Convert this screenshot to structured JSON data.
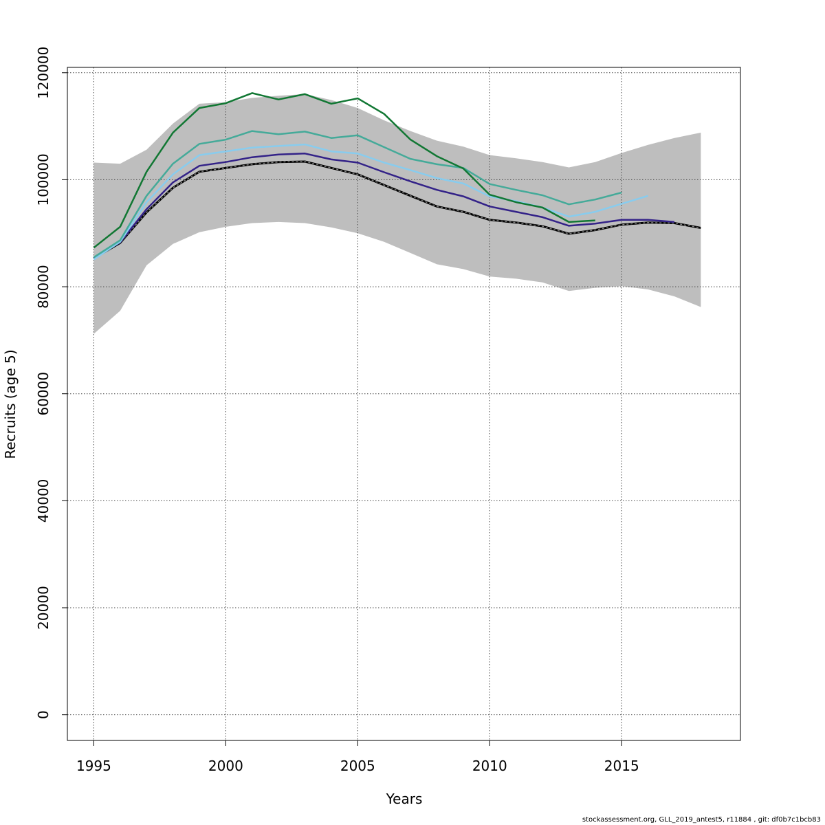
{
  "chart_data": {
    "type": "line",
    "title": "",
    "xlabel": "Years",
    "ylabel": "Recruits (age 5)",
    "xlim": [
      1994,
      2019.5
    ],
    "ylim": [
      -4800,
      121000
    ],
    "xticks": [
      1995,
      2000,
      2005,
      2010,
      2015
    ],
    "yticks": [
      0,
      20000,
      40000,
      60000,
      80000,
      100000,
      120000
    ],
    "grid": true,
    "legend": "none",
    "band": {
      "color": "#bebebe",
      "x": [
        1995,
        1996,
        1997,
        1998,
        1999,
        2000,
        2001,
        2002,
        2003,
        2004,
        2005,
        2006,
        2007,
        2008,
        2009,
        2010,
        2011,
        2012,
        2013,
        2014,
        2015,
        2016,
        2017,
        2018
      ],
      "upper": [
        103200,
        103000,
        105600,
        110500,
        114200,
        114500,
        115300,
        115700,
        116000,
        114900,
        113400,
        111100,
        109100,
        107300,
        106200,
        104600,
        104000,
        103300,
        102300,
        103300,
        105000,
        106500,
        107800,
        108800
      ],
      "lower": [
        71200,
        75500,
        84000,
        88000,
        90200,
        91200,
        91900,
        92100,
        91900,
        91100,
        90000,
        88400,
        86300,
        84200,
        83300,
        81900,
        81500,
        80800,
        79200,
        79800,
        80100,
        79500,
        78200,
        76200
      ]
    },
    "series": [
      {
        "color": "#000000",
        "dashed": true,
        "x": [
          1995,
          1996,
          1997,
          1998,
          1999,
          2000,
          2001,
          2002,
          2003,
          2004,
          2005,
          2006,
          2007,
          2008,
          2009,
          2010,
          2011,
          2012,
          2013,
          2014,
          2015,
          2016,
          2017,
          2018
        ],
        "values": [
          85300,
          88200,
          93900,
          98500,
          101500,
          102200,
          102900,
          103300,
          103400,
          102200,
          101000,
          99000,
          97000,
          95000,
          94000,
          92500,
          92000,
          91300,
          89900,
          90600,
          91600,
          92000,
          91900,
          91000
        ]
      },
      {
        "color": "#332288",
        "x": [
          1995,
          1996,
          1997,
          1998,
          1999,
          2000,
          2001,
          2002,
          2003,
          2004,
          2005,
          2006,
          2007,
          2008,
          2009,
          2010,
          2011,
          2012,
          2013,
          2014,
          2015,
          2016,
          2017
        ],
        "values": [
          85400,
          88300,
          94500,
          99500,
          102600,
          103300,
          104200,
          104700,
          104900,
          103800,
          103200,
          101400,
          99700,
          98100,
          96900,
          95000,
          94000,
          93000,
          91400,
          91800,
          92500,
          92500,
          92100
        ]
      },
      {
        "color": "#88ccee",
        "x": [
          1995,
          1996,
          1997,
          1998,
          1999,
          2000,
          2001,
          2002,
          2003,
          2004,
          2005,
          2006,
          2007,
          2008,
          2009,
          2010,
          2011,
          2012,
          2013,
          2014,
          2015,
          2016
        ],
        "values": [
          85100,
          88400,
          95800,
          101000,
          104600,
          105300,
          106000,
          106300,
          106600,
          105300,
          104900,
          103200,
          101800,
          100300,
          99300,
          96900,
          96000,
          94800,
          93100,
          94000,
          95500,
          97000
        ]
      },
      {
        "color": "#44aa99",
        "x": [
          1995,
          1996,
          1997,
          1998,
          1999,
          2000,
          2001,
          2002,
          2003,
          2004,
          2005,
          2006,
          2007,
          2008,
          2009,
          2010,
          2011,
          2012,
          2013,
          2014,
          2015
        ],
        "values": [
          85500,
          88700,
          97000,
          103000,
          106700,
          107500,
          109100,
          108500,
          109000,
          107800,
          108300,
          106100,
          103900,
          102900,
          102200,
          99200,
          98100,
          97100,
          95400,
          96300,
          97600
        ]
      },
      {
        "color": "#117733",
        "x": [
          1995,
          1996,
          1997,
          1998,
          1999,
          2000,
          2001,
          2002,
          2003,
          2004,
          2005,
          2006,
          2007,
          2008,
          2009,
          2010,
          2011,
          2012,
          2013,
          2014
        ],
        "values": [
          87300,
          91200,
          101500,
          108800,
          113400,
          114300,
          116200,
          115000,
          116000,
          114200,
          115200,
          112300,
          107500,
          104400,
          102100,
          97200,
          95800,
          94800,
          92100,
          92400
        ]
      }
    ]
  },
  "footer": "stockassessment.org, GLL_2019_antest5, r11884 , git: df0b7c1bcb83"
}
